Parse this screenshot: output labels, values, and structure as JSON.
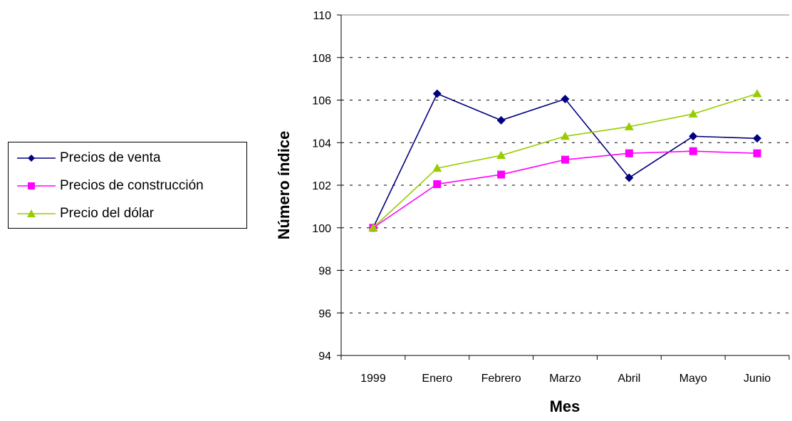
{
  "chart_data": {
    "type": "line",
    "xlabel": "Mes",
    "ylabel": "Número índice",
    "categories": [
      "1999",
      "Enero",
      "Febrero",
      "Marzo",
      "Abril",
      "Mayo",
      "Junio"
    ],
    "ylim": [
      94,
      110
    ],
    "yticks": [
      "94",
      "96",
      "98",
      "100",
      "102",
      "104",
      "106",
      "108",
      "110"
    ],
    "grid": "horizontal dashed",
    "legend_position": "left",
    "series": [
      {
        "name": "Precios de venta",
        "color": "#000080",
        "marker": "diamond",
        "values": [
          100,
          106.3,
          105.05,
          106.05,
          102.35,
          104.3,
          104.2
        ]
      },
      {
        "name": "Precios de construcción",
        "color": "#ff00ff",
        "marker": "square",
        "values": [
          100,
          102.05,
          102.5,
          103.2,
          103.5,
          103.6,
          103.5
        ]
      },
      {
        "name": "Precio del dólar",
        "color": "#99cc00",
        "marker": "triangle",
        "values": [
          100,
          102.8,
          103.4,
          104.3,
          104.75,
          105.35,
          106.3
        ]
      }
    ]
  }
}
